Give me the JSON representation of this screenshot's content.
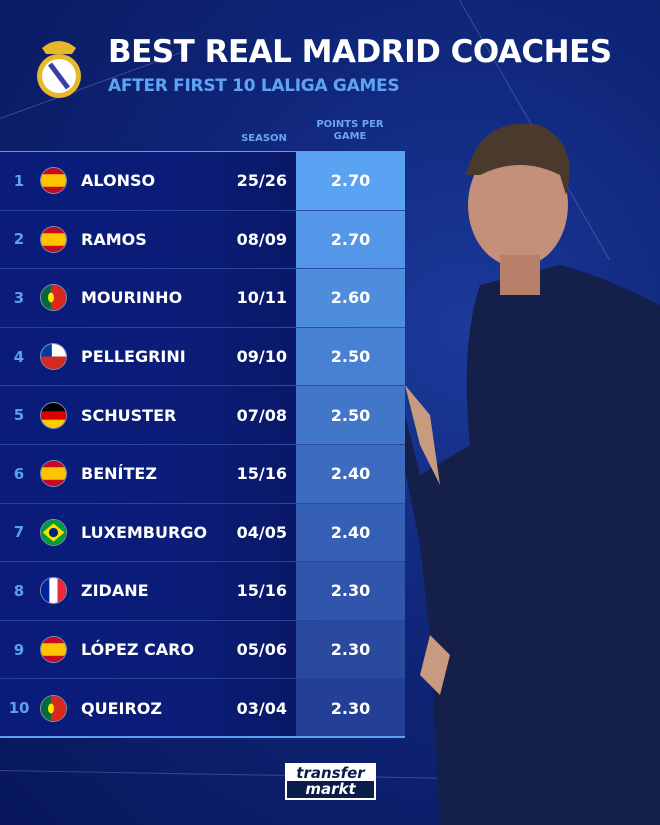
{
  "header": {
    "title": "BEST REAL MADRID COACHES",
    "subtitle": "AFTER FIRST 10 LALIGA GAMES"
  },
  "columns": {
    "season": "SEASON",
    "points_line1": "POINTS PER",
    "points_line2": "GAME"
  },
  "rows": [
    {
      "rank": "1",
      "flag": "spain",
      "name": "ALONSO",
      "season": "25/26",
      "ppg": "2.70"
    },
    {
      "rank": "2",
      "flag": "spain",
      "name": "RAMOS",
      "season": "08/09",
      "ppg": "2.70"
    },
    {
      "rank": "3",
      "flag": "portugal",
      "name": "MOURINHO",
      "season": "10/11",
      "ppg": "2.60"
    },
    {
      "rank": "4",
      "flag": "chile",
      "name": "PELLEGRINI",
      "season": "09/10",
      "ppg": "2.50"
    },
    {
      "rank": "5",
      "flag": "germany",
      "name": "SCHUSTER",
      "season": "07/08",
      "ppg": "2.50"
    },
    {
      "rank": "6",
      "flag": "spain",
      "name": "BENÍTEZ",
      "season": "15/16",
      "ppg": "2.40"
    },
    {
      "rank": "7",
      "flag": "brazil",
      "name": "LUXEMBURGO",
      "season": "04/05",
      "ppg": "2.40"
    },
    {
      "rank": "8",
      "flag": "france",
      "name": "ZIDANE",
      "season": "15/16",
      "ppg": "2.30"
    },
    {
      "rank": "9",
      "flag": "spain",
      "name": "LÓPEZ CARO",
      "season": "05/06",
      "ppg": "2.30"
    },
    {
      "rank": "10",
      "flag": "portugal",
      "name": "QUEIROZ",
      "season": "03/04",
      "ppg": "2.30"
    }
  ],
  "logo": {
    "line1": "transfer",
    "line2": "markt"
  },
  "colors": {
    "accent": "#5fa3f2",
    "background": "#0f2578",
    "points_top": "#5aa2f2",
    "points_bottom": "#243f96"
  }
}
